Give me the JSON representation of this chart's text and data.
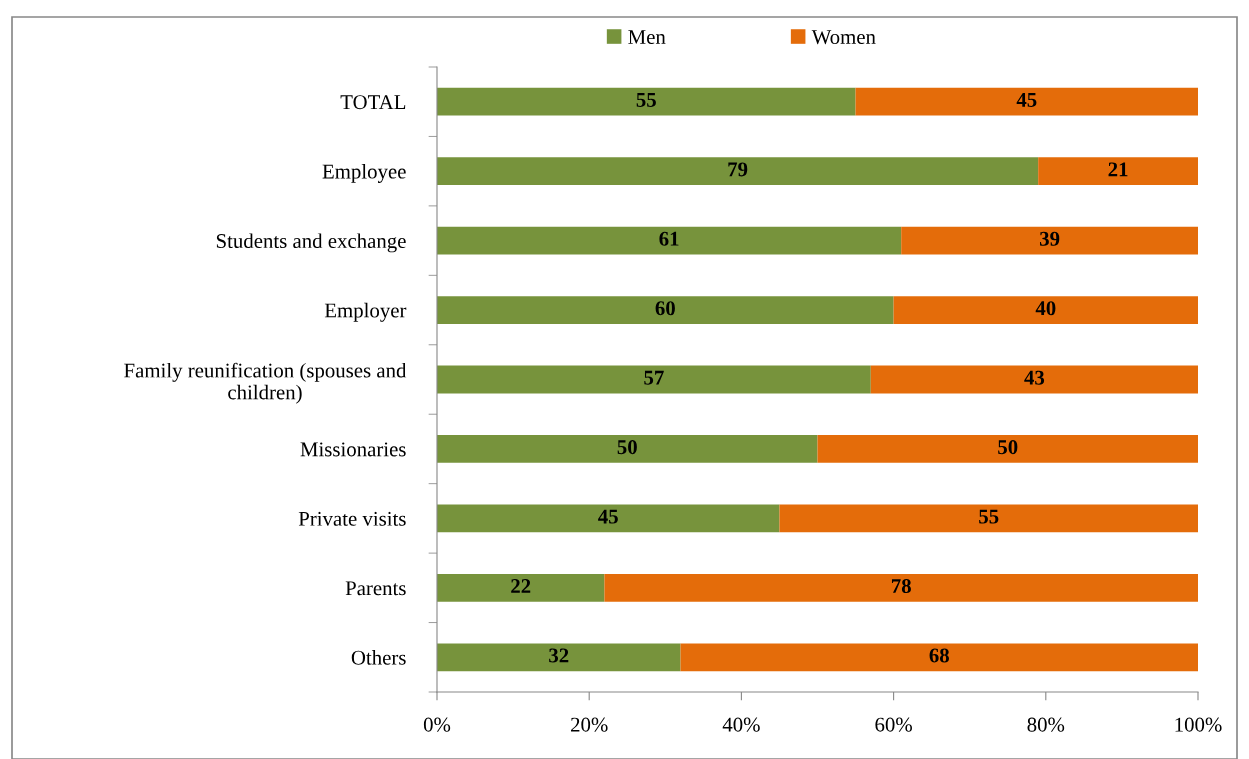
{
  "chart_data": {
    "type": "bar",
    "orientation": "horizontal",
    "stacked": true,
    "data_labels": true,
    "legend": "top",
    "grid": false,
    "categories": [
      "TOTAL",
      "Employee",
      "Students and exchange",
      "Employer",
      "Family reunification (spouses and\nchildren)",
      "Missionaries",
      "Private visits",
      "Parents",
      "Others"
    ],
    "series": [
      {
        "name": "Men",
        "color": "#77933c",
        "values": [
          55,
          79,
          61,
          60,
          57,
          50,
          45,
          22,
          32
        ]
      },
      {
        "name": "Women",
        "color": "#e46c0a",
        "values": [
          45,
          21,
          39,
          40,
          43,
          50,
          55,
          78,
          68
        ]
      }
    ],
    "xlim": [
      0,
      100
    ],
    "xticks": [
      {
        "value": 0,
        "label": "0%"
      },
      {
        "value": 20,
        "label": "20%"
      },
      {
        "value": 40,
        "label": "40%"
      },
      {
        "value": 60,
        "label": "60%"
      },
      {
        "value": 80,
        "label": "80%"
      },
      {
        "value": 100,
        "label": "100%"
      }
    ]
  }
}
